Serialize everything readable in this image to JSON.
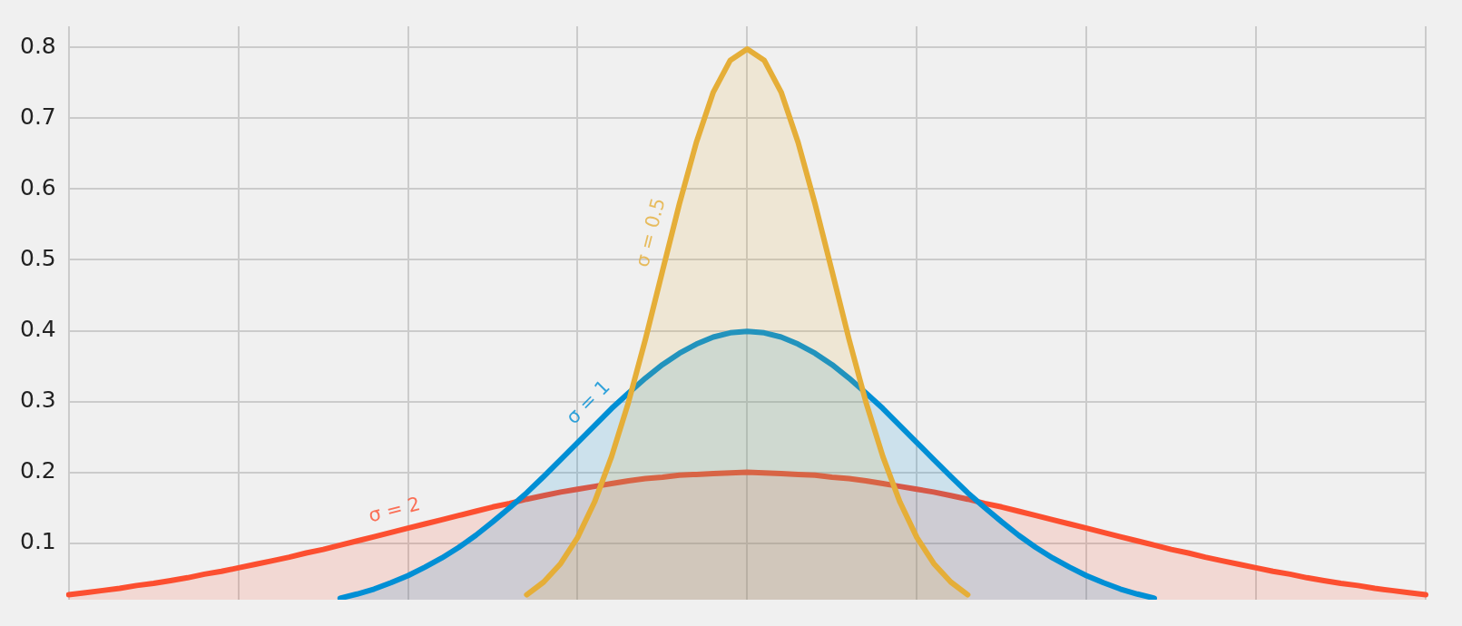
{
  "chart_data": {
    "type": "area",
    "ylim": [
      0.02,
      0.83
    ],
    "categories": [
      null,
      null,
      null,
      null,
      null,
      null,
      null,
      null,
      null,
      null,
      null,
      null,
      null,
      null,
      null,
      null,
      null,
      null,
      null,
      null,
      null,
      null,
      null,
      null,
      null,
      null,
      null,
      null,
      null,
      null,
      null,
      null,
      null,
      null,
      null,
      null,
      null,
      null,
      null,
      null,
      null,
      null,
      null,
      null,
      null,
      null,
      null,
      null,
      null,
      null,
      null,
      null,
      null,
      null,
      null,
      null,
      null,
      null,
      null,
      null,
      null,
      null,
      null,
      null,
      null,
      null,
      null,
      null,
      null,
      null,
      null,
      null,
      null,
      null,
      null,
      null,
      null,
      null,
      null,
      null,
      null
    ],
    "yticks": [
      0.1,
      0.2,
      0.3,
      0.4,
      0.5,
      0.6,
      0.7,
      0.8
    ],
    "tick_labels": "y",
    "grid": true,
    "legend": false,
    "marker": "none",
    "line_style": "solid",
    "series": [
      {
        "name": "σ = 2",
        "color": "#fc4f30",
        "values": [
          0.027,
          0.03,
          0.033,
          0.036,
          0.04,
          0.043,
          0.047,
          0.051,
          0.056,
          0.06,
          0.065,
          0.07,
          0.075,
          0.08,
          0.086,
          0.091,
          0.097,
          0.103,
          0.109,
          0.115,
          0.121,
          0.127,
          0.133,
          0.139,
          0.145,
          0.151,
          0.156,
          0.162,
          0.167,
          0.172,
          0.176,
          0.18,
          0.184,
          0.188,
          0.191,
          0.193,
          0.196,
          0.197,
          0.198,
          0.199,
          0.2,
          0.199,
          0.198,
          0.197,
          0.196,
          0.193,
          0.191,
          0.188,
          0.184,
          0.18,
          0.176,
          0.172,
          0.167,
          0.162,
          0.156,
          0.151,
          0.145,
          0.139,
          0.133,
          0.127,
          0.121,
          0.115,
          0.109,
          0.103,
          0.097,
          0.091,
          0.086,
          0.08,
          0.075,
          0.07,
          0.065,
          0.06,
          0.056,
          0.051,
          0.047,
          0.043,
          0.04,
          0.036,
          0.033,
          0.03,
          0.027
        ]
      },
      {
        "name": "σ = 1",
        "color": "#008fd5",
        "values": [
          null,
          null,
          null,
          null,
          null,
          null,
          null,
          null,
          null,
          null,
          null,
          null,
          null,
          null,
          null,
          null,
          0.022,
          0.028,
          0.035,
          0.044,
          0.054,
          0.066,
          0.079,
          0.094,
          0.111,
          0.13,
          0.15,
          0.171,
          0.194,
          0.218,
          0.242,
          0.266,
          0.29,
          0.312,
          0.333,
          0.352,
          0.368,
          0.381,
          0.391,
          0.397,
          0.399,
          0.397,
          0.391,
          0.381,
          0.368,
          0.352,
          0.333,
          0.312,
          0.29,
          0.266,
          0.242,
          0.218,
          0.194,
          0.171,
          0.15,
          0.13,
          0.111,
          0.094,
          0.079,
          0.066,
          0.054,
          0.044,
          0.035,
          0.028,
          0.022,
          null,
          null,
          null,
          null,
          null,
          null,
          null,
          null,
          null,
          null,
          null,
          null,
          null,
          null,
          null,
          null
        ]
      },
      {
        "name": "σ = 0.5",
        "color": "#e5ae38",
        "values": [
          null,
          null,
          null,
          null,
          null,
          null,
          null,
          null,
          null,
          null,
          null,
          null,
          null,
          null,
          null,
          null,
          null,
          null,
          null,
          null,
          null,
          null,
          null,
          null,
          null,
          null,
          null,
          0.027,
          0.045,
          0.071,
          0.108,
          0.158,
          0.222,
          0.299,
          0.388,
          0.484,
          0.579,
          0.666,
          0.737,
          0.782,
          0.798,
          0.782,
          0.737,
          0.666,
          0.579,
          0.484,
          0.388,
          0.299,
          0.222,
          0.158,
          0.108,
          0.071,
          0.045,
          0.027,
          null,
          null,
          null,
          null,
          null,
          null,
          null,
          null,
          null,
          null,
          null,
          null,
          null,
          null,
          null,
          null,
          null,
          null,
          null,
          null,
          null,
          null,
          null,
          null,
          null,
          null,
          null
        ]
      }
    ]
  }
}
